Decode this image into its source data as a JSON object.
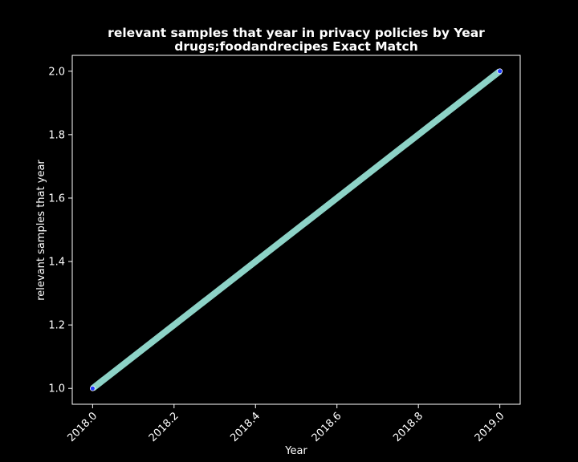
{
  "chart_data": {
    "type": "line",
    "title": "relevant samples that year in privacy policies by Year",
    "subtitle": "drugs;foodandrecipes Exact Match",
    "xlabel": "Year",
    "ylabel": "relevant samples that year",
    "x": [
      2018,
      2019
    ],
    "series": [
      {
        "values": [
          1,
          2
        ]
      }
    ],
    "xlim": [
      2017.95,
      2019.05
    ],
    "ylim": [
      0.95,
      2.05
    ],
    "xticks": [
      2018.0,
      2018.2,
      2018.4,
      2018.6,
      2018.8,
      2019.0
    ],
    "xtick_labels": [
      "2018.0",
      "2018.2",
      "2018.4",
      "2018.6",
      "2018.8",
      "2019.0"
    ],
    "yticks": [
      1.0,
      1.2,
      1.4,
      1.6,
      1.8,
      2.0
    ],
    "ytick_labels": [
      "1.0",
      "1.2",
      "1.4",
      "1.6",
      "1.8",
      "2.0"
    ],
    "grid": false,
    "colors": {
      "background": "#000000",
      "line": "#8dd3c7",
      "marker": "#1f3cff",
      "axes": "#ffffff",
      "text": "#ffffff"
    }
  }
}
